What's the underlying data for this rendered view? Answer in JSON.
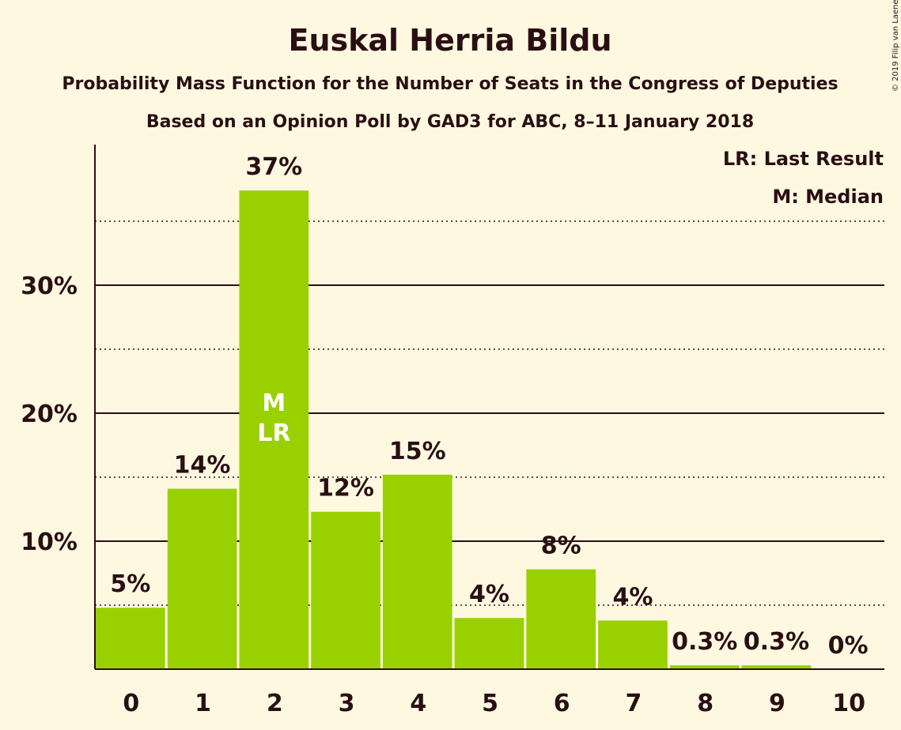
{
  "chart_data": {
    "type": "bar",
    "title": "Euskal Herria Bildu",
    "subtitle": "Probability Mass Function for the Number of Seats in the Congress of Deputies",
    "subtitle2": "Based on an Opinion Poll by GAD3 for ABC, 8–11 January 2018",
    "copyright": "© 2019 Filip van Laenen",
    "categories": [
      "0",
      "1",
      "2",
      "3",
      "4",
      "5",
      "6",
      "7",
      "8",
      "9",
      "10"
    ],
    "values": [
      4.8,
      14.1,
      37.4,
      12.3,
      15.2,
      4.0,
      7.8,
      3.8,
      0.3,
      0.3,
      0
    ],
    "data_labels": [
      "5%",
      "14%",
      "37%",
      "12%",
      "15%",
      "4%",
      "8%",
      "4%",
      "0.3%",
      "0.3%",
      "0%"
    ],
    "y_ticks": [
      {
        "value": 10,
        "label": "10%"
      },
      {
        "value": 20,
        "label": "20%"
      },
      {
        "value": 30,
        "label": "30%"
      }
    ],
    "minor_gridlines": [
      5,
      15,
      25,
      35
    ],
    "ylim": [
      0,
      40
    ],
    "median_index": 2,
    "last_result_index": 2,
    "median_marker": "M",
    "last_result_marker": "LR",
    "legend": [
      "LR: Last Result",
      "M: Median"
    ],
    "colors": {
      "bar": "#99D100",
      "background": "#FFF8E1",
      "text": "#2A0F12",
      "grid": "#2A0F12"
    }
  }
}
